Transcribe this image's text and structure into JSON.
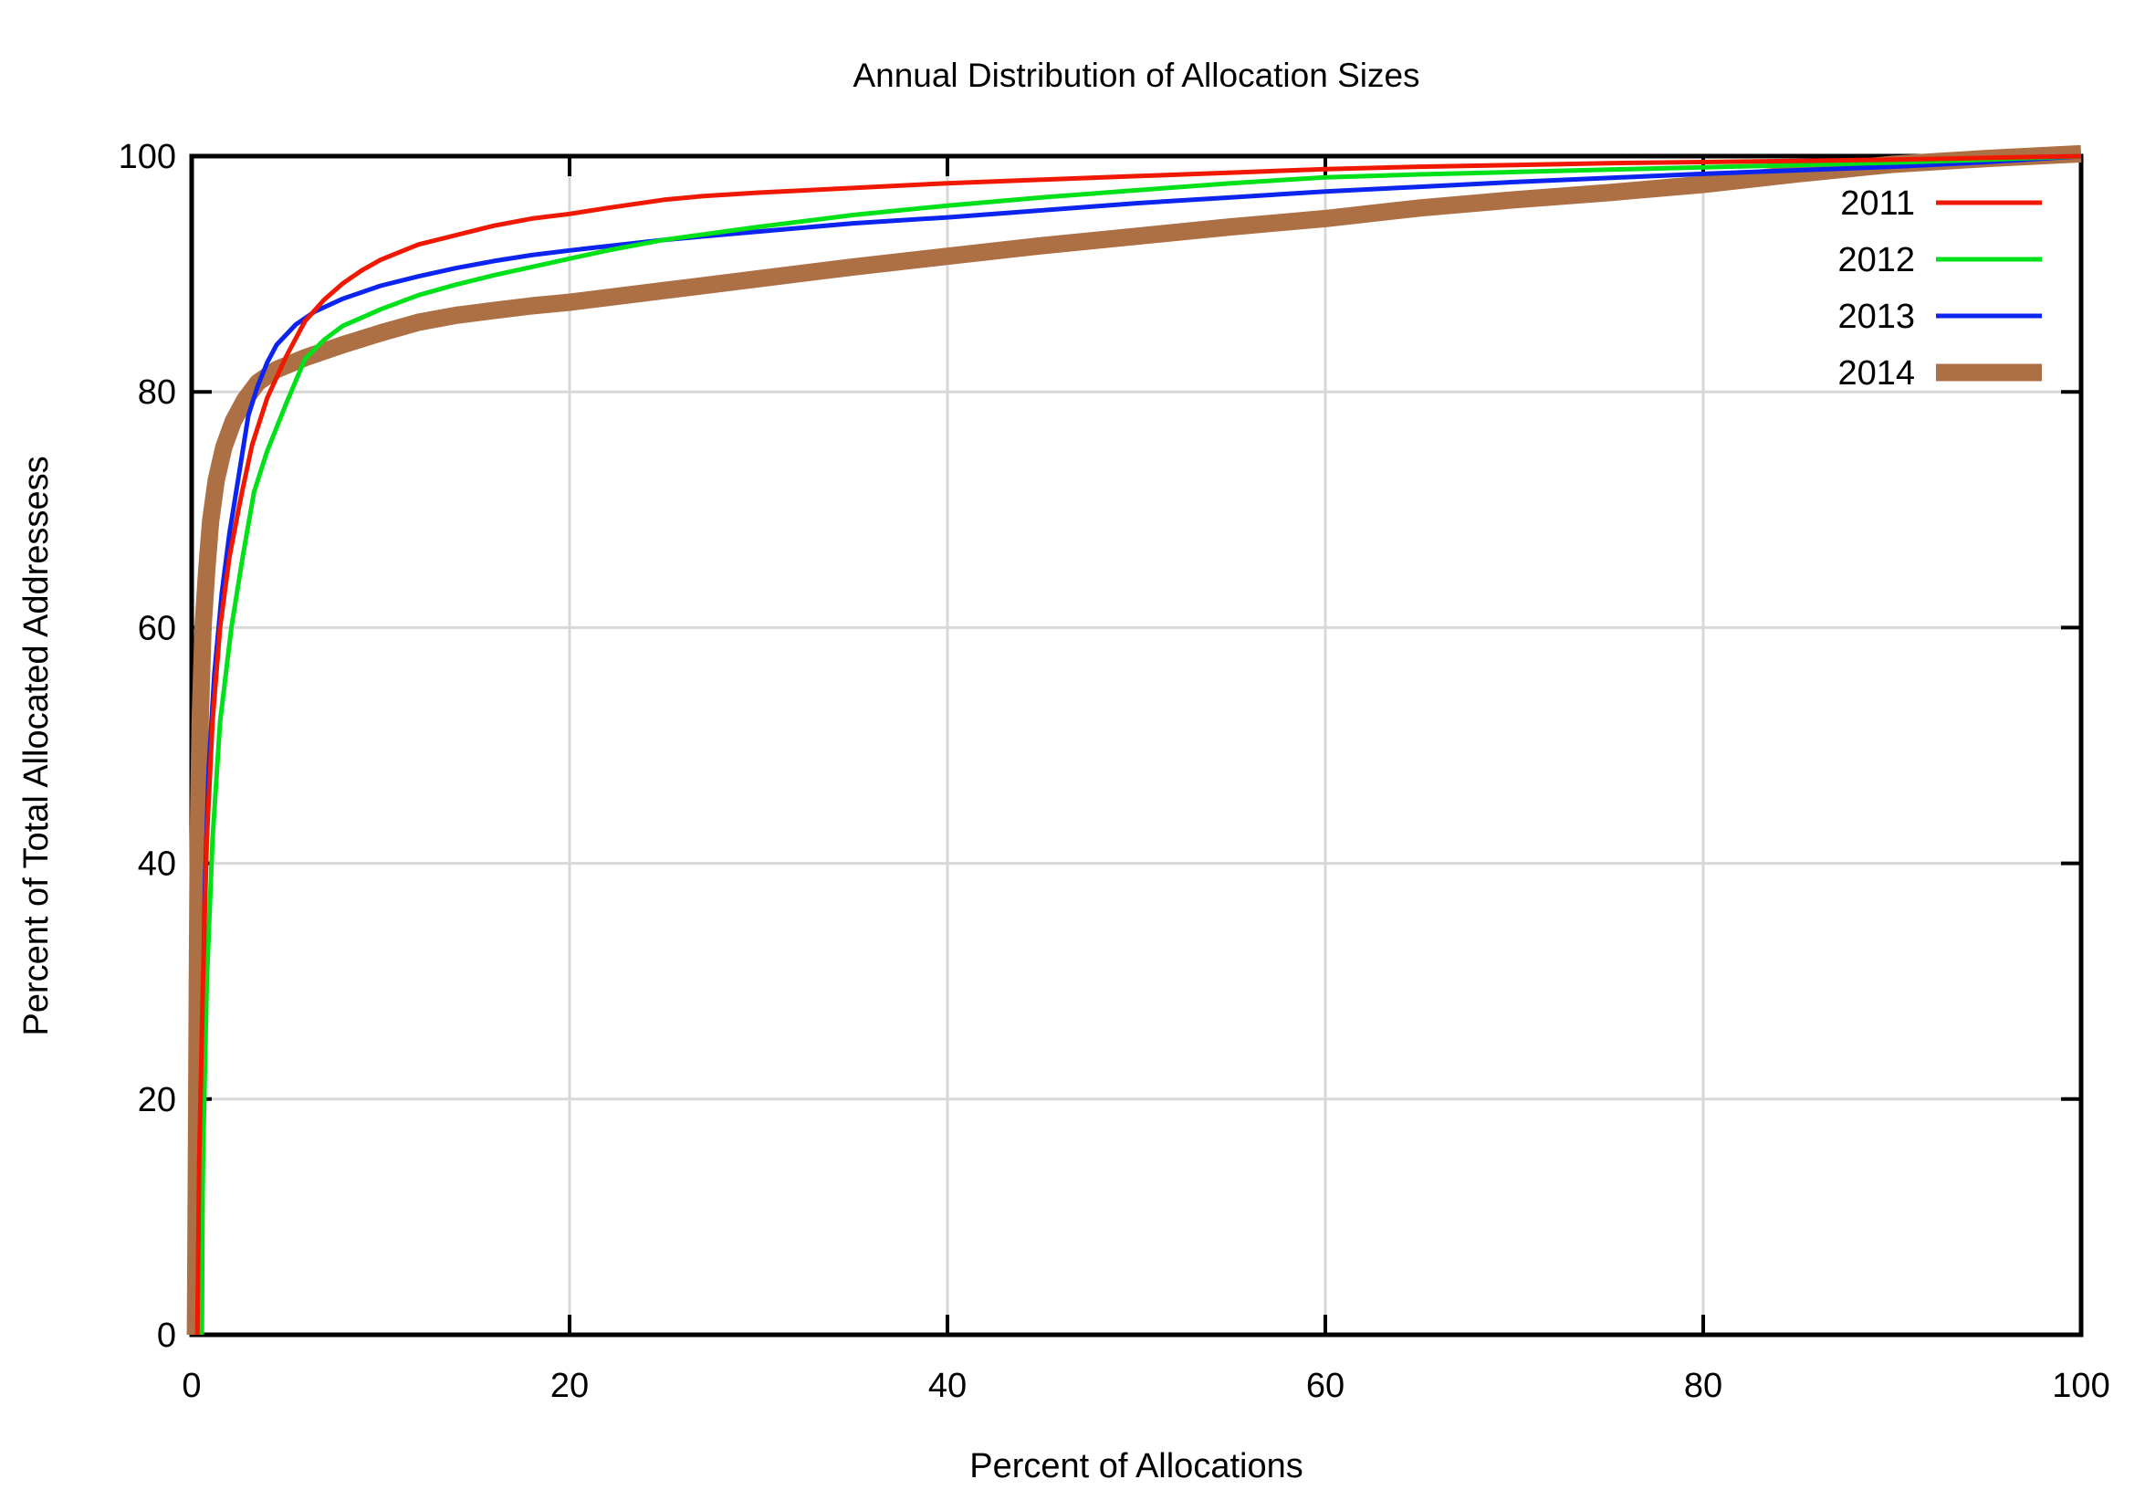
{
  "chart_data": {
    "type": "line",
    "title": "Annual Distribution of Allocation Sizes",
    "xlabel": "Percent of Allocations",
    "ylabel": "Percent of Total Allocated Addressess",
    "xlim": [
      0,
      100
    ],
    "ylim": [
      0,
      100
    ],
    "xticks": [
      0,
      20,
      40,
      60,
      80,
      100
    ],
    "yticks": [
      0,
      20,
      40,
      60,
      80,
      100
    ],
    "grid": true,
    "grid_color": "#d8d8d8",
    "axis_color": "#000000",
    "background_color": "#ffffff",
    "legend_position": "top-right",
    "legend_entries": [
      "2011",
      "2012",
      "2013",
      "2014"
    ],
    "series": [
      {
        "name": "2011",
        "color": "#f01800",
        "width": 5,
        "points": [
          [
            0.3,
            0
          ],
          [
            0.4,
            15
          ],
          [
            0.6,
            30
          ],
          [
            0.8,
            42
          ],
          [
            1.1,
            52
          ],
          [
            1.5,
            60
          ],
          [
            2,
            66
          ],
          [
            2.6,
            71
          ],
          [
            3.2,
            75.5
          ],
          [
            4,
            79.5
          ],
          [
            5,
            83
          ],
          [
            6,
            86
          ],
          [
            7,
            87.8
          ],
          [
            8,
            89.2
          ],
          [
            9,
            90.3
          ],
          [
            10,
            91.2
          ],
          [
            12,
            92.5
          ],
          [
            14,
            93.3
          ],
          [
            16,
            94.1
          ],
          [
            18,
            94.7
          ],
          [
            20,
            95.1
          ],
          [
            22,
            95.6
          ],
          [
            25,
            96.3
          ],
          [
            27,
            96.6
          ],
          [
            30,
            96.9
          ],
          [
            35,
            97.3
          ],
          [
            40,
            97.7
          ],
          [
            45,
            98
          ],
          [
            50,
            98.3
          ],
          [
            55,
            98.6
          ],
          [
            60,
            98.9
          ],
          [
            65,
            99.1
          ],
          [
            70,
            99.25
          ],
          [
            75,
            99.4
          ],
          [
            80,
            99.5
          ],
          [
            85,
            99.6
          ],
          [
            90,
            99.7
          ],
          [
            95,
            99.85
          ],
          [
            100,
            100
          ]
        ]
      },
      {
        "name": "2012",
        "color": "#00e119",
        "width": 5,
        "points": [
          [
            0.5,
            0
          ],
          [
            0.6,
            15
          ],
          [
            0.8,
            30
          ],
          [
            1.1,
            42
          ],
          [
            1.5,
            52
          ],
          [
            2.1,
            60
          ],
          [
            2.7,
            66
          ],
          [
            3.3,
            71.5
          ],
          [
            4,
            75
          ],
          [
            5,
            79
          ],
          [
            6,
            82.8
          ],
          [
            7,
            84.4
          ],
          [
            8,
            85.6
          ],
          [
            9,
            86.3
          ],
          [
            10,
            87
          ],
          [
            12,
            88.2
          ],
          [
            14,
            89.1
          ],
          [
            16,
            89.9
          ],
          [
            18,
            90.6
          ],
          [
            20,
            91.3
          ],
          [
            22,
            92
          ],
          [
            25,
            92.9
          ],
          [
            30,
            94
          ],
          [
            35,
            95
          ],
          [
            40,
            95.8
          ],
          [
            45,
            96.5
          ],
          [
            50,
            97.1
          ],
          [
            55,
            97.7
          ],
          [
            60,
            98.2
          ],
          [
            65,
            98.45
          ],
          [
            70,
            98.65
          ],
          [
            75,
            98.85
          ],
          [
            80,
            99.05
          ],
          [
            85,
            99.25
          ],
          [
            90,
            99.45
          ],
          [
            95,
            99.7
          ],
          [
            100,
            100
          ]
        ]
      },
      {
        "name": "2013",
        "color": "#0b24f0",
        "width": 5,
        "points": [
          [
            0.4,
            0
          ],
          [
            0.5,
            15
          ],
          [
            0.6,
            28
          ],
          [
            0.7,
            38
          ],
          [
            0.9,
            48
          ],
          [
            1.2,
            56
          ],
          [
            1.6,
            63
          ],
          [
            2,
            68
          ],
          [
            2.5,
            73
          ],
          [
            3,
            78
          ],
          [
            3.5,
            80.5
          ],
          [
            4,
            82.5
          ],
          [
            4.5,
            84
          ],
          [
            5.5,
            85.7
          ],
          [
            6.5,
            86.8
          ],
          [
            8,
            87.9
          ],
          [
            10,
            89
          ],
          [
            12,
            89.8
          ],
          [
            14,
            90.5
          ],
          [
            16,
            91.1
          ],
          [
            18,
            91.6
          ],
          [
            20,
            92
          ],
          [
            25,
            92.9
          ],
          [
            30,
            93.6
          ],
          [
            35,
            94.3
          ],
          [
            40,
            94.8
          ],
          [
            45,
            95.4
          ],
          [
            50,
            96
          ],
          [
            55,
            96.5
          ],
          [
            60,
            97
          ],
          [
            65,
            97.4
          ],
          [
            70,
            97.8
          ],
          [
            75,
            98.15
          ],
          [
            80,
            98.5
          ],
          [
            85,
            98.8
          ],
          [
            90,
            99.1
          ],
          [
            95,
            99.5
          ],
          [
            100,
            100
          ]
        ]
      },
      {
        "name": "2014",
        "color": "#ad6f44",
        "width": 19,
        "points": [
          [
            0.2,
            0
          ],
          [
            0.25,
            15
          ],
          [
            0.3,
            30
          ],
          [
            0.35,
            42
          ],
          [
            0.45,
            52
          ],
          [
            0.6,
            60
          ],
          [
            0.8,
            65
          ],
          [
            1,
            69
          ],
          [
            1.3,
            72.5
          ],
          [
            1.7,
            75.3
          ],
          [
            2.2,
            77.5
          ],
          [
            2.8,
            79.3
          ],
          [
            3.5,
            80.8
          ],
          [
            4.5,
            81.9
          ],
          [
            6,
            82.9
          ],
          [
            8,
            84
          ],
          [
            10,
            85
          ],
          [
            12,
            85.9
          ],
          [
            14,
            86.5
          ],
          [
            16,
            86.9
          ],
          [
            18,
            87.3
          ],
          [
            20,
            87.6
          ],
          [
            25,
            88.6
          ],
          [
            30,
            89.6
          ],
          [
            35,
            90.6
          ],
          [
            40,
            91.5
          ],
          [
            45,
            92.4
          ],
          [
            50,
            93.2
          ],
          [
            55,
            94
          ],
          [
            60,
            94.7
          ],
          [
            65,
            95.6
          ],
          [
            70,
            96.3
          ],
          [
            75,
            96.9
          ],
          [
            80,
            97.6
          ],
          [
            85,
            98.5
          ],
          [
            90,
            99.3
          ],
          [
            95,
            99.8
          ],
          [
            100,
            100.2
          ]
        ]
      }
    ]
  }
}
